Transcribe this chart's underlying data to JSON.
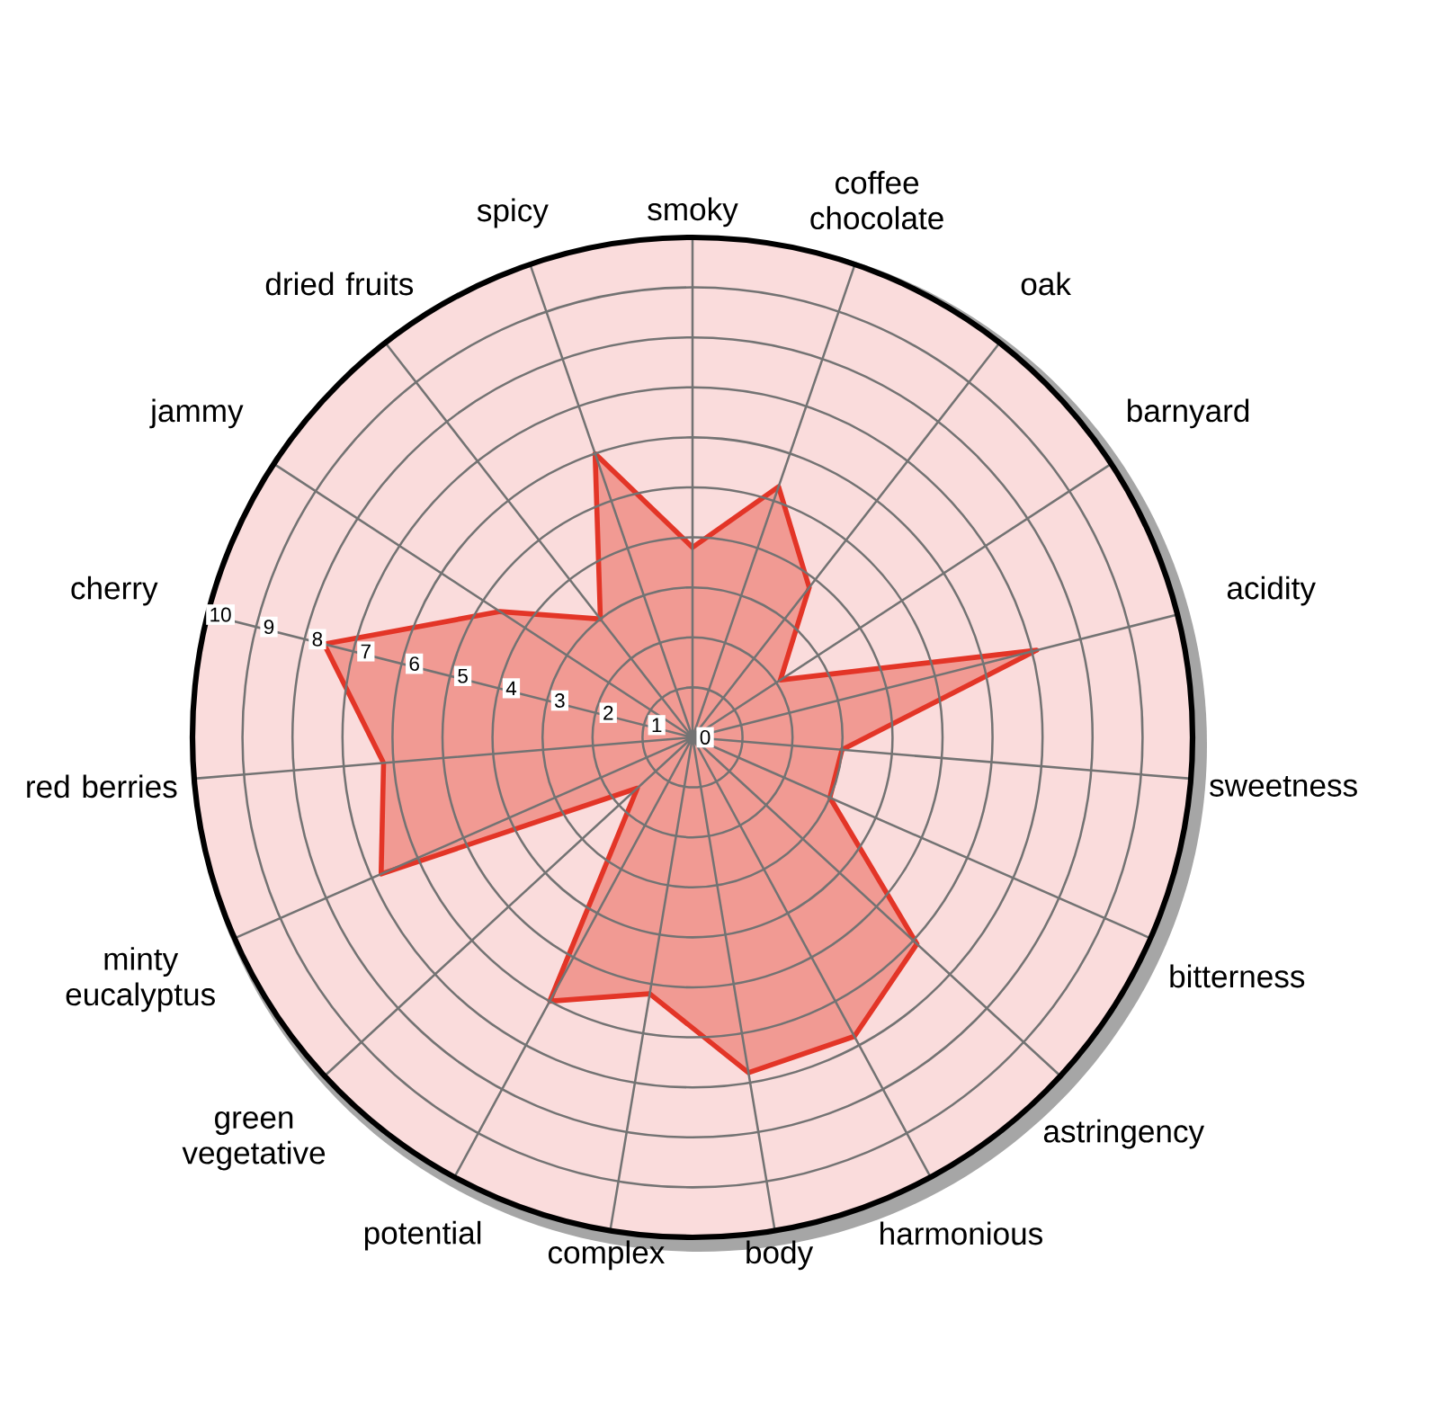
{
  "chart_data": {
    "type": "radar",
    "categories": [
      "smoky",
      "coffee chocolate",
      "oak",
      "barnyard",
      "acidity",
      "sweetness",
      "bitterness",
      "astringency",
      "harmonious",
      "body",
      "complex",
      "potential",
      "green vegetative",
      "minty eucalyptus",
      "red berries",
      "cherry",
      "jammy",
      "dried fruits",
      "spicy"
    ],
    "series": [
      {
        "color": "#e33527",
        "values": [
          3.8,
          5.3,
          3.8,
          2.1,
          7.1,
          3.0,
          3.0,
          6.1,
          6.8,
          6.8,
          5.2,
          6.0,
          1.5,
          6.8,
          6.2,
          7.6,
          4.6,
          3.0,
          6.0
        ]
      }
    ],
    "ylim": [
      0,
      10
    ],
    "yticks": [
      0,
      1,
      2,
      3,
      4,
      5,
      6,
      7,
      8,
      9,
      10
    ],
    "grid": true,
    "marker": "none",
    "line_style": "solid"
  }
}
